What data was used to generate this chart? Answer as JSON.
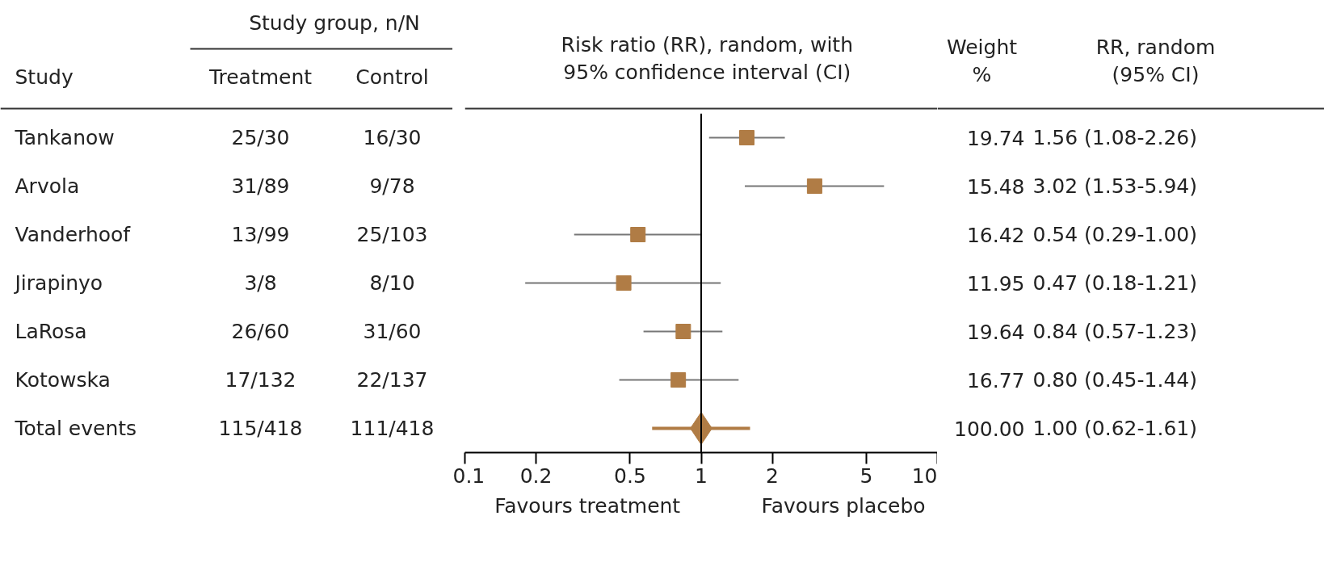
{
  "chart_data": [
    {
      "type": "other",
      "title": "Study group, n/N",
      "categories": [
        "Study",
        "Treatment",
        "Control"
      ],
      "annotations": [
        "Tankanow",
        "25/30",
        "16/30",
        "Arvola",
        "31/89",
        "9/78",
        "Vanderhoof",
        "13/99",
        "25/103",
        "Jirapinyo",
        "3/8",
        "8/10",
        "LaRosa",
        "26/60",
        "31/60",
        "Kotowska",
        "17/132",
        "22/137",
        "Total events",
        "115/418",
        "111/418"
      ]
    },
    {
      "type": "scatter",
      "title": "Risk ratio (RR), random, with\n95% confidence interval (CI)",
      "orientation": "horizontal",
      "log": "x",
      "tick_labels": "x",
      "categories": [
        null,
        null,
        null,
        null,
        null,
        null,
        null
      ],
      "series": [
        {
          "color": "#b07c45",
          "marker": "square",
          "values": [
            1.56,
            3.02,
            0.54,
            0.47,
            0.84,
            0.8,
            null
          ],
          "errors": [
            [
              1.08,
              2.26
            ],
            [
              1.53,
              5.94
            ],
            [
              0.29,
              1.0
            ],
            [
              0.18,
              1.21
            ],
            [
              0.57,
              1.23
            ],
            [
              0.45,
              1.44
            ],
            null
          ]
        },
        {
          "color": "#b07c45",
          "marker": "diamond",
          "values": [
            null,
            null,
            null,
            null,
            null,
            null,
            1.0
          ],
          "errors": [
            null,
            null,
            null,
            null,
            null,
            null,
            [
              0.62,
              1.61
            ]
          ]
        }
      ],
      "xlim": [
        0.1,
        10
      ],
      "xticks": [
        0.1,
        0.2,
        0.5,
        1,
        2,
        5,
        10
      ],
      "ref_lines": [
        {
          "axis": "x",
          "value": 1,
          "color": "#000000"
        }
      ],
      "annotations": [
        "Favours treatment",
        "Favours placebo"
      ]
    },
    {
      "type": "other",
      "categories": [
        "Weight\n%",
        "RR, random\n(95% CI)"
      ],
      "annotations": [
        "19.74",
        "1.56 (1.08-2.26)",
        "15.48",
        "3.02 (1.53-5.94)",
        "16.42",
        "0.54 (0.29-1.00)",
        "11.95",
        "0.47 (0.18-1.21)",
        "19.64",
        "0.84 (0.57-1.23)",
        "16.77",
        "0.80 (0.45-1.44)",
        "100.00",
        "1.00 (0.62-1.61)"
      ]
    }
  ]
}
